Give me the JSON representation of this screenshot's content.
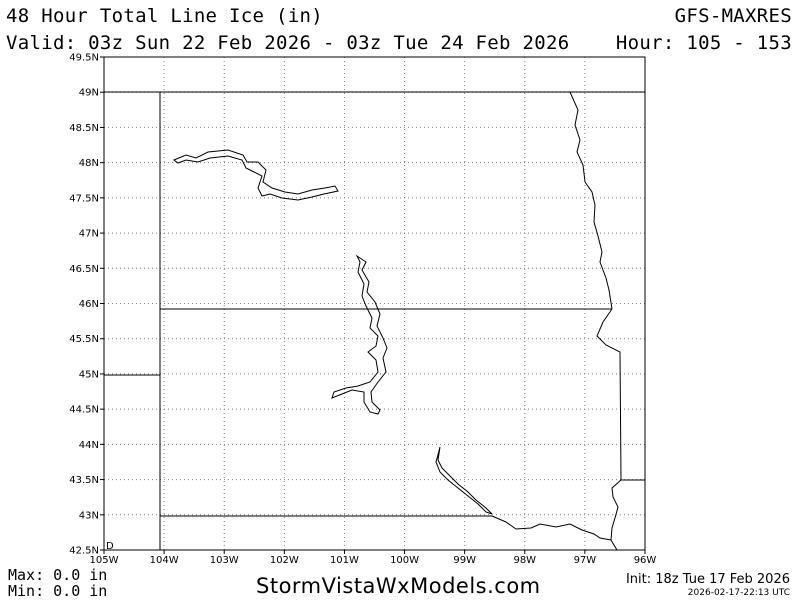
{
  "header": {
    "title": "48 Hour Total Line Ice (in)",
    "model": "GFS-MAXRES",
    "valid": "Valid: 03z Sun 22 Feb 2026 - 03z Tue 24 Feb 2026",
    "hour": "Hour: 105 - 153"
  },
  "map": {
    "lat_labels": [
      "49.5N",
      "49N",
      "48.5N",
      "48N",
      "47.5N",
      "47N",
      "46.5N",
      "46N",
      "45.5N",
      "45N",
      "44.5N",
      "44N",
      "43.5N",
      "43N",
      "42.5N"
    ],
    "lon_labels": [
      "105W",
      "104W",
      "103W",
      "102W",
      "101W",
      "100W",
      "99W",
      "98W",
      "97W",
      "96W"
    ],
    "lat_range": [
      42.5,
      49.5
    ],
    "lon_range": [
      -105,
      -96
    ],
    "grid": true,
    "colors": {
      "background": "#ffffff",
      "lines": "#000000",
      "grid": "#808080"
    }
  },
  "footer": {
    "max": "Max: 0.0 in",
    "min": "Min: 0.0 in",
    "site": "StormVistaWxModels.com",
    "init": "Init: 18z Tue 17 Feb 2026",
    "stamp": "2026-02-17-22:13 UTC"
  }
}
